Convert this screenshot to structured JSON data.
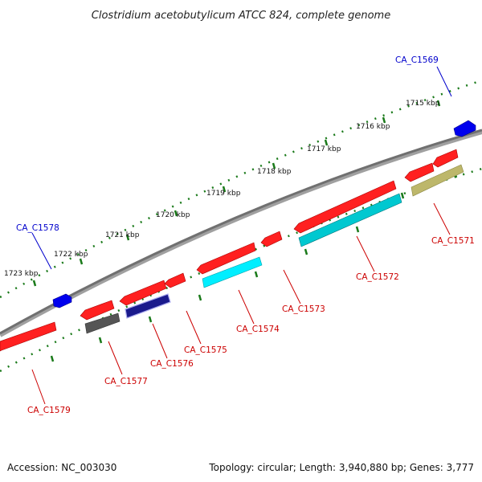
{
  "title": "Clostridium acetobutylicum ATCC 824, complete genome",
  "footer": {
    "accession": "Accession: NC_003030",
    "summary": "Topology: circular; Length: 3,940,880 bp; Genes: 3,777"
  },
  "scale_labels": [
    "1715 kbp",
    "1716 kbp",
    "1717 kbp",
    "1718 kbp",
    "1719 kbp",
    "1720 kbp",
    "1721 kbp",
    "1722 kbp",
    "1723 kbp"
  ],
  "genes": [
    {
      "label": "CA_C1569",
      "strand": "forward",
      "color": "#0000cc"
    },
    {
      "label": "CA_C1571",
      "strand": "reverse",
      "color": "#cc0000"
    },
    {
      "label": "CA_C1572",
      "strand": "reverse",
      "color": "#cc0000"
    },
    {
      "label": "CA_C1573",
      "strand": "reverse",
      "color": "#cc0000"
    },
    {
      "label": "CA_C1574",
      "strand": "reverse",
      "color": "#cc0000"
    },
    {
      "label": "CA_C1575",
      "strand": "reverse",
      "color": "#cc0000"
    },
    {
      "label": "CA_C1576",
      "strand": "reverse",
      "color": "#cc0000"
    },
    {
      "label": "CA_C1577",
      "strand": "reverse",
      "color": "#cc0000"
    },
    {
      "label": "CA_C1578",
      "strand": "forward",
      "color": "#0000cc"
    },
    {
      "label": "CA_C1579",
      "strand": "reverse",
      "color": "#cc0000"
    }
  ],
  "colors": {
    "backbone": "#808080",
    "tick": "#1a7a1a",
    "gene_red": "#ff0000",
    "gene_blue": "#0000ee",
    "cds_cyan": "#00e5ee",
    "cds_olive": "#bdb76b",
    "cds_navy": "#1a1a8c",
    "cds_grey": "#555555"
  }
}
